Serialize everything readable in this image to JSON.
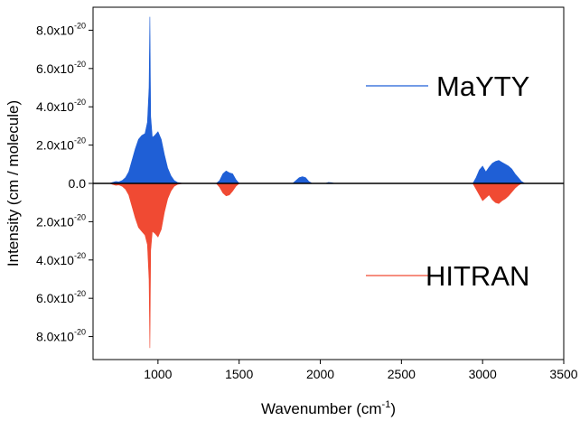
{
  "chart_data": {
    "type": "area",
    "xlabel": "Wavenumber (cm",
    "xlabel_sup": "-1",
    "xlabel_end": ")",
    "ylabel": "Intensity (cm / molecule)",
    "xlim": [
      600,
      3500
    ],
    "ylim": [
      -9.2e-20,
      9.2e-20
    ],
    "x_ticks": [
      1000,
      1500,
      2000,
      2500,
      3000,
      3500
    ],
    "y_ticks": [
      {
        "value": 8e-20,
        "mant": "8.0x10",
        "exp": "-20"
      },
      {
        "value": 6e-20,
        "mant": "6.0x10",
        "exp": "-20"
      },
      {
        "value": 4e-20,
        "mant": "4.0x10",
        "exp": "-20"
      },
      {
        "value": 2e-20,
        "mant": "2.0x10",
        "exp": "-20"
      },
      {
        "value": 0,
        "mant": "0.0",
        "exp": ""
      },
      {
        "value": -2e-20,
        "mant": "2.0x10",
        "exp": "-20"
      },
      {
        "value": -4e-20,
        "mant": "4.0x10",
        "exp": "-20"
      },
      {
        "value": -6e-20,
        "mant": "6.0x10",
        "exp": "-20"
      },
      {
        "value": -8e-20,
        "mant": "8.0x10",
        "exp": "-20"
      }
    ],
    "legend": [
      {
        "name": "MaYTY",
        "color": "#1f5fd6"
      },
      {
        "name": "HITRAN",
        "color": "#f04a33"
      }
    ],
    "series": [
      {
        "name": "MaYTY",
        "direction": "up",
        "color": "#1f5fd6",
        "bands": [
          {
            "x": [
              700,
              720,
              740,
              760,
              780,
              800,
              820,
              840,
              860,
              880,
              900,
              920,
              935,
              945,
              950,
              955,
              965,
              980,
              1000,
              1020,
              1040,
              1060,
              1080,
              1100,
              1120,
              1140,
              1160
            ],
            "y": [
              0,
              5e-22,
              1e-21,
              8e-22,
              1.5e-21,
              3e-21,
              6e-21,
              1.2e-20,
              1.8e-20,
              2.3e-20,
              2.5e-20,
              2.6e-20,
              3.2e-20,
              5e-20,
              8.7e-20,
              3.5e-20,
              2.4e-20,
              2.5e-20,
              2.7e-20,
              2.3e-20,
              1.5e-20,
              8e-21,
              4e-21,
              1.5e-21,
              5e-22,
              2e-22,
              0
            ]
          },
          {
            "x": [
              1360,
              1380,
              1400,
              1420,
              1440,
              1460,
              1480,
              1500
            ],
            "y": [
              0,
              1.5e-21,
              5e-21,
              6.5e-21,
              5.5e-21,
              5e-21,
              2e-21,
              0
            ]
          },
          {
            "x": [
              1830,
              1850,
              1870,
              1890,
              1910,
              1930,
              1950
            ],
            "y": [
              0,
              1.5e-21,
              3e-21,
              3.5e-21,
              3e-21,
              1e-21,
              0
            ]
          },
          {
            "x": [
              2030,
              2050,
              2070,
              2090
            ],
            "y": [
              0,
              5e-22,
              4e-22,
              0
            ]
          },
          {
            "x": [
              2940,
              2960,
              2980,
              3000,
              3020,
              3040,
              3060,
              3080,
              3100,
              3120,
              3140,
              3160,
              3180,
              3200,
              3220,
              3240,
              3260
            ],
            "y": [
              0,
              3e-21,
              7e-21,
              9e-21,
              6e-21,
              8.5e-21,
              1.05e-20,
              1.15e-20,
              1.2e-20,
              1.1e-20,
              1e-20,
              9e-21,
              7.5e-21,
              5e-21,
              3e-21,
              1e-21,
              0
            ]
          }
        ]
      },
      {
        "name": "HITRAN",
        "direction": "down",
        "color": "#f04a33",
        "bands": [
          {
            "x": [
              700,
              720,
              740,
              760,
              780,
              800,
              820,
              840,
              860,
              880,
              900,
              920,
              935,
              945,
              950,
              955,
              965,
              980,
              1000,
              1020,
              1040,
              1060,
              1080,
              1100,
              1120,
              1140,
              1160
            ],
            "y": [
              0,
              5e-22,
              1e-21,
              8e-22,
              1.5e-21,
              3e-21,
              6e-21,
              1.2e-20,
              1.8e-20,
              2.3e-20,
              2.5e-20,
              2.7e-20,
              3.2e-20,
              5e-20,
              8.6e-20,
              3.5e-20,
              2.5e-20,
              2.6e-20,
              2.8e-20,
              2.4e-20,
              1.5e-20,
              8e-21,
              4e-21,
              1.5e-21,
              5e-22,
              2e-22,
              0
            ]
          },
          {
            "x": [
              1360,
              1380,
              1400,
              1420,
              1440,
              1460,
              1480,
              1500
            ],
            "y": [
              0,
              2e-21,
              5e-21,
              6.5e-21,
              6e-21,
              4e-21,
              1.5e-21,
              0
            ]
          },
          {
            "x": [
              2940,
              2960,
              2980,
              3000,
              3020,
              3040,
              3060,
              3080,
              3100,
              3120,
              3140,
              3160,
              3180,
              3200,
              3220,
              3240
            ],
            "y": [
              0,
              3e-21,
              6e-21,
              9e-21,
              7.5e-21,
              6e-21,
              8.5e-21,
              1e-20,
              1.05e-20,
              9e-21,
              8e-21,
              6.5e-21,
              4.5e-21,
              2.5e-21,
              1e-21,
              0
            ]
          }
        ]
      }
    ]
  }
}
